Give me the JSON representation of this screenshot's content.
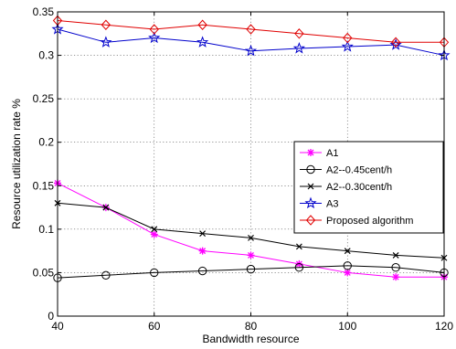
{
  "chart_data": {
    "type": "line",
    "title": "",
    "xlabel": "Bandwidth resource",
    "ylabel": "Resource utilization rate  %",
    "xlim": [
      40,
      120
    ],
    "ylim": [
      0,
      0.35
    ],
    "x_ticks": [
      40,
      60,
      80,
      100,
      120
    ],
    "y_ticks": [
      0,
      0.05,
      0.1,
      0.15,
      0.2,
      0.25,
      0.3,
      0.35
    ],
    "y_tick_labels": [
      "0",
      "0.05",
      "0.1",
      "0.15",
      "0.2",
      "0.25",
      "0.3",
      "0.35"
    ],
    "grid": true,
    "legend_position": "center-right",
    "x": [
      40,
      50,
      60,
      70,
      80,
      90,
      100,
      110,
      120
    ],
    "series": [
      {
        "name": "A1",
        "color": "#ff00ff",
        "marker": "star",
        "values": [
          0.153,
          0.125,
          0.094,
          0.075,
          0.07,
          0.06,
          0.05,
          0.045,
          0.045
        ]
      },
      {
        "name": "A2--0.45cent/h",
        "color": "#000000",
        "marker": "circle",
        "values": [
          0.044,
          0.047,
          0.05,
          0.052,
          0.054,
          0.056,
          0.058,
          0.056,
          0.05
        ]
      },
      {
        "name": "A2--0.30cent/h",
        "color": "#000000",
        "marker": "x",
        "values": [
          0.13,
          0.125,
          0.1,
          0.095,
          0.09,
          0.08,
          0.075,
          0.07,
          0.067
        ]
      },
      {
        "name": "A3",
        "color": "#0000cc",
        "marker": "pentagram",
        "values": [
          0.33,
          0.315,
          0.32,
          0.315,
          0.305,
          0.308,
          0.31,
          0.312,
          0.3
        ]
      },
      {
        "name": "Proposed algorithm",
        "color": "#e00000",
        "marker": "diamond",
        "values": [
          0.34,
          0.335,
          0.33,
          0.335,
          0.33,
          0.325,
          0.32,
          0.315,
          0.315
        ]
      }
    ]
  }
}
